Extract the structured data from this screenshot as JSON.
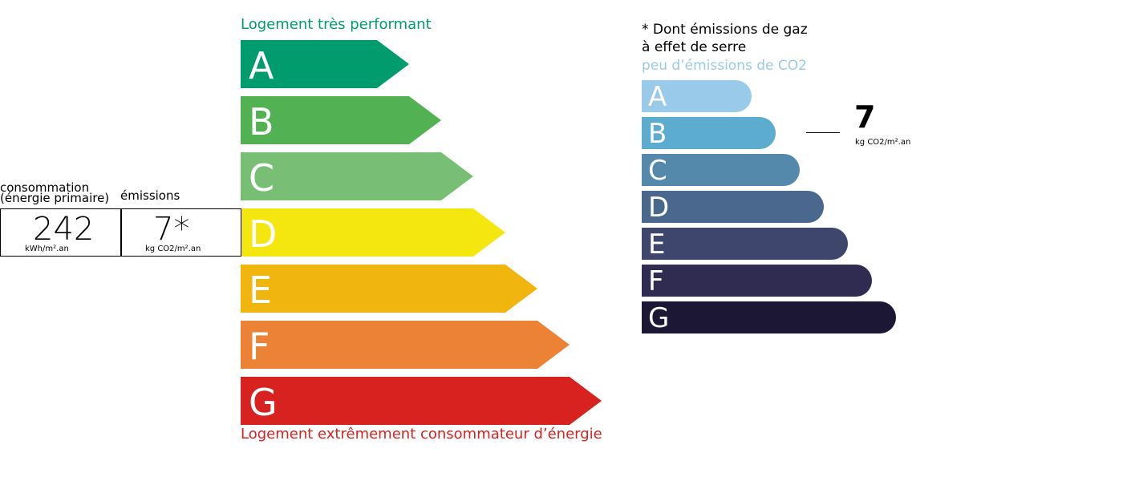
{
  "energy": {
    "top_label": "Logement très performant",
    "bottom_label": "Logement extrêmement consommateur d’énergie",
    "classes": [
      {
        "letter": "A",
        "color": "#009c6d"
      },
      {
        "letter": "B",
        "color": "#52b153"
      },
      {
        "letter": "C",
        "color": "#78bf75"
      },
      {
        "letter": "D",
        "color": "#f4e70f"
      },
      {
        "letter": "E",
        "color": "#f0b50f"
      },
      {
        "letter": "F",
        "color": "#eb8235"
      },
      {
        "letter": "G",
        "color": "#d7221f"
      }
    ],
    "current_class": "D"
  },
  "summary": {
    "consumption_label_1": "consommation",
    "consumption_label_2": "(énergie primaire)",
    "emissions_label": "émissions",
    "consumption_value": "242",
    "consumption_unit": "kWh/m².an",
    "emissions_value": "7*",
    "emissions_unit": "kg CO2/m².an"
  },
  "ghg": {
    "note_line1": "* Dont émissions de gaz",
    "note_line2": "à effet de serre",
    "top_label": "peu d’émissions de CO2",
    "top_label_color": "#99cae9",
    "classes": [
      {
        "letter": "A",
        "color": "#99cae9"
      },
      {
        "letter": "B",
        "color": "#5baccf"
      },
      {
        "letter": "C",
        "color": "#5589ab"
      },
      {
        "letter": "D",
        "color": "#4a678d"
      },
      {
        "letter": "E",
        "color": "#3f466e"
      },
      {
        "letter": "F",
        "color": "#2f2b51"
      },
      {
        "letter": "G",
        "color": "#1b1734"
      }
    ],
    "current_class": "B",
    "value": "7",
    "unit": "kg CO2/m².an"
  }
}
